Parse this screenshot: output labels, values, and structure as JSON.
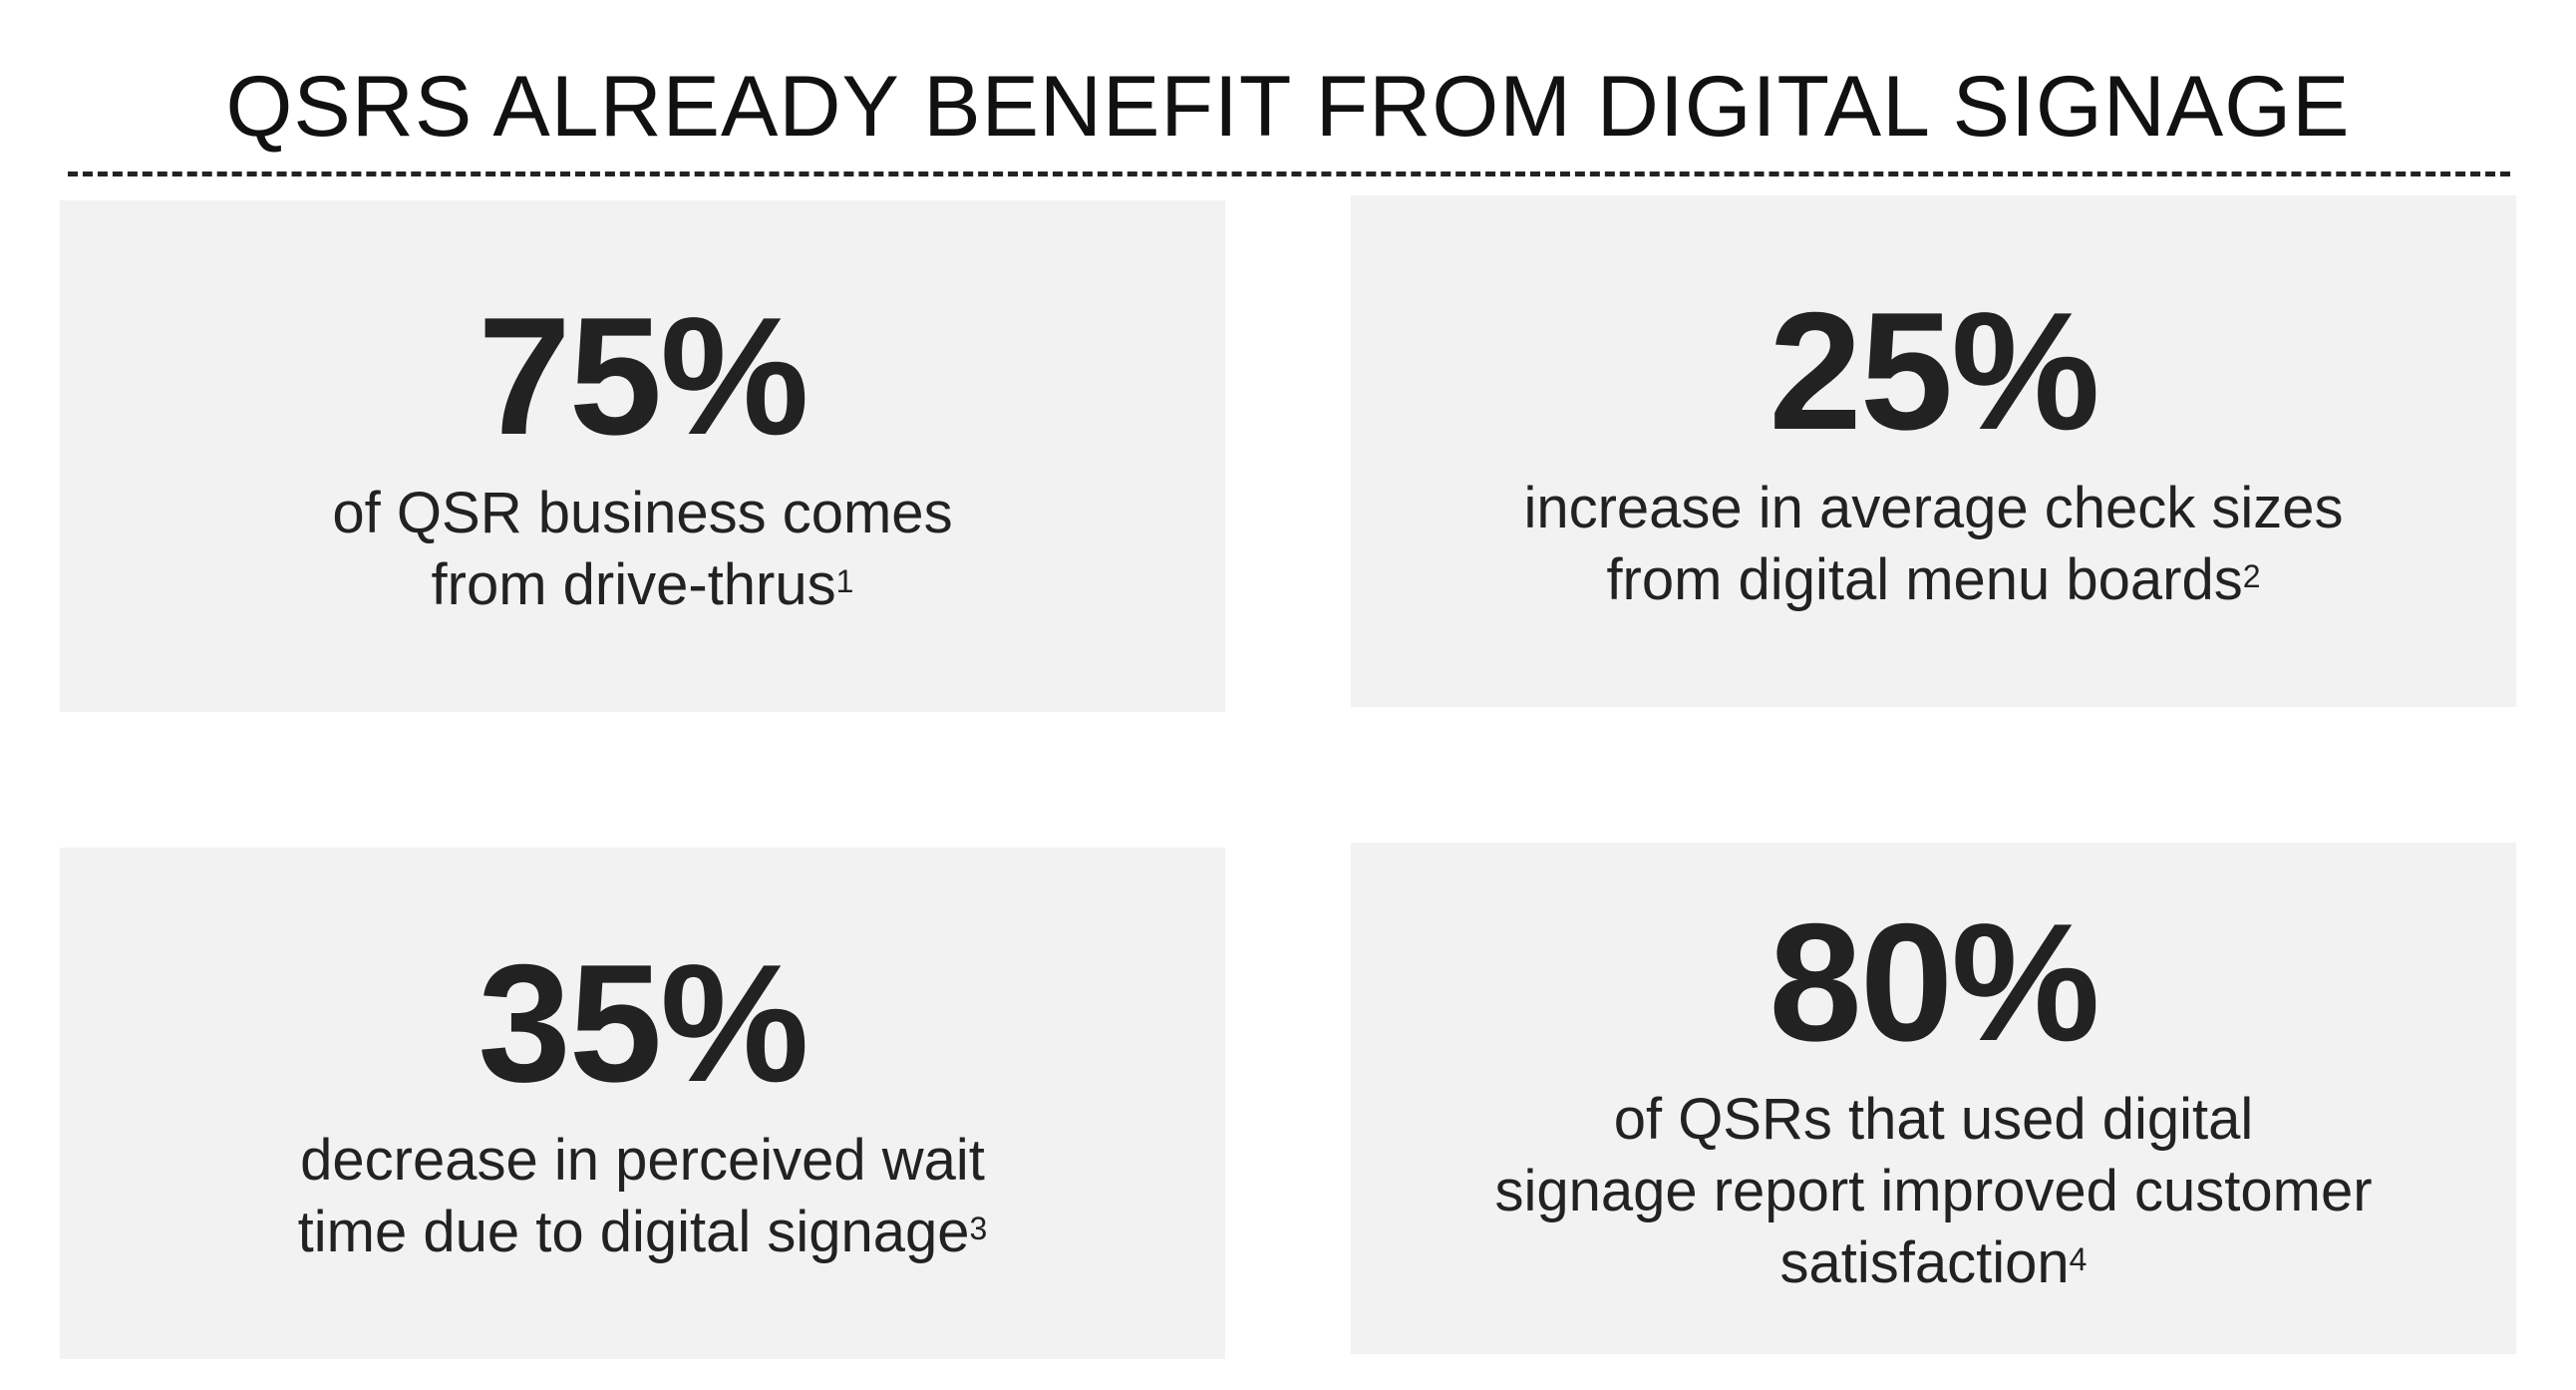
{
  "title": "QSRS ALREADY BENEFIT FROM DIGITAL SIGNAGE",
  "colors": {
    "card_background": "#f2f2f2",
    "text": "#222222"
  },
  "stats": [
    {
      "value": "75%",
      "lines": [
        "of QSR business comes",
        "from drive-thrus"
      ],
      "footnote": "1"
    },
    {
      "value": "25%",
      "lines": [
        "increase in average check sizes",
        "from digital menu boards"
      ],
      "footnote": "2"
    },
    {
      "value": "35%",
      "lines": [
        "decrease in perceived wait",
        "time due to digital signage"
      ],
      "footnote": "3"
    },
    {
      "value": "80%",
      "lines": [
        "of QSRs that used digital",
        "signage report improved customer",
        "satisfaction"
      ],
      "footnote": "4"
    }
  ]
}
